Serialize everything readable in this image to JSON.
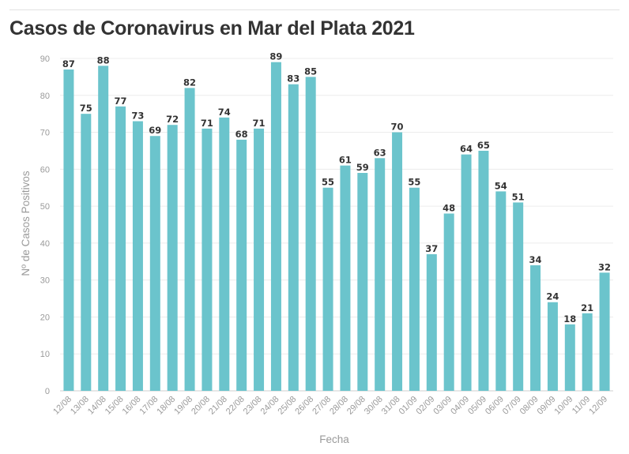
{
  "chart_data": {
    "type": "bar",
    "title": "Casos de Coronavirus en Mar del Plata 2021",
    "xlabel": "Fecha",
    "ylabel": "Nº de Casos Positivos",
    "ylim": [
      0,
      90
    ],
    "yticks": [
      0,
      10,
      20,
      30,
      40,
      50,
      60,
      70,
      80,
      90
    ],
    "grid": true,
    "color": "#6bc4cc",
    "categories": [
      "12/08",
      "13/08",
      "14/08",
      "15/08",
      "16/08",
      "17/08",
      "18/08",
      "19/08",
      "20/08",
      "21/08",
      "22/08",
      "23/08",
      "24/08",
      "25/08",
      "26/08",
      "27/08",
      "28/08",
      "29/08",
      "30/08",
      "31/08",
      "01/09",
      "02/09",
      "03/09",
      "04/09",
      "05/09",
      "06/09",
      "07/09",
      "08/09",
      "09/09",
      "10/09",
      "11/09",
      "12/09"
    ],
    "values": [
      87,
      75,
      88,
      77,
      73,
      69,
      72,
      82,
      71,
      74,
      68,
      71,
      89,
      83,
      85,
      55,
      61,
      59,
      63,
      70,
      55,
      37,
      48,
      64,
      65,
      54,
      51,
      34,
      24,
      18,
      21,
      32
    ]
  }
}
